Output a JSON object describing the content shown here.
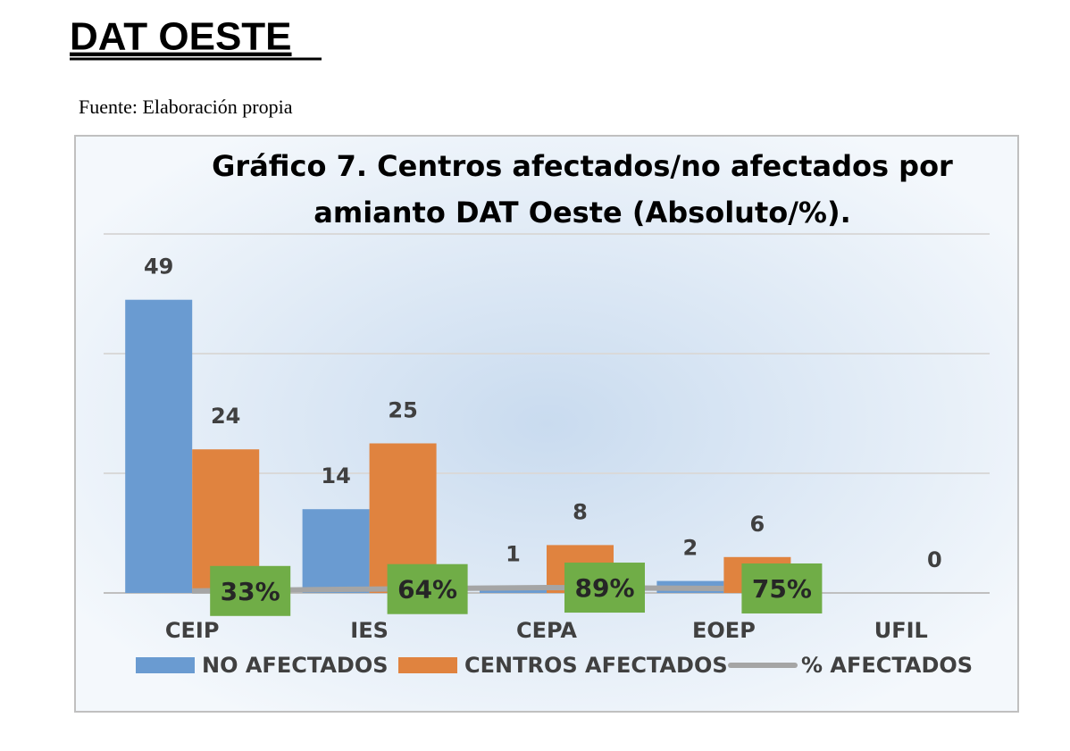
{
  "heading": "DAT OESTE",
  "source": "Fuente: Elaboración propia",
  "chart_data": {
    "type": "bar",
    "title": [
      "Gráfico 7. Centros afectados/no afectados por",
      "amianto DAT Oeste (Absoluto/%)."
    ],
    "categories": [
      "CEIP",
      "IES",
      "CEPA",
      "EOEP",
      "UFIL"
    ],
    "series": [
      {
        "name": "NO AFECTADOS",
        "color": "#6a9bd1",
        "values": [
          49,
          14,
          1,
          2,
          null
        ]
      },
      {
        "name": "CENTROS AFECTADOS",
        "color": "#e0833f",
        "values": [
          24,
          25,
          8,
          6,
          0
        ]
      },
      {
        "name": "% AFECTADOS",
        "type": "line",
        "color": "#a5a5a5",
        "label_color": "#70ad47",
        "values": [
          0.33,
          0.64,
          0.89,
          0.75,
          null
        ],
        "value_labels": [
          "33%",
          "64%",
          "89%",
          "75%",
          null
        ]
      }
    ],
    "ylim": [
      0,
      60
    ],
    "yticks": [
      0,
      20,
      40,
      60
    ],
    "grid": true,
    "legend": "bottom"
  }
}
